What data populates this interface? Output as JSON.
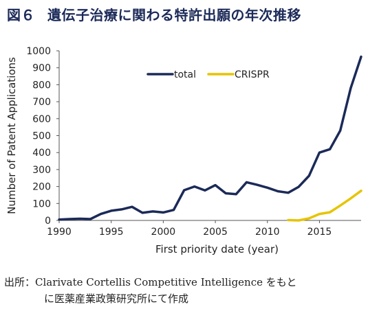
{
  "figure": {
    "number": "図６",
    "title": "遺伝子治療に関わる特許出願の年次推移"
  },
  "source": {
    "line1": "出所：Clarivate Cortellis Competitive Intelligence をもと",
    "line2": "に医薬産業政策研究所にて作成"
  },
  "chart_data": {
    "type": "line",
    "xlabel": "First priority date (year)",
    "ylabel": "Number of Patent Applications",
    "xlim": [
      1990,
      2019
    ],
    "ylim": [
      0,
      1000
    ],
    "x_ticks": [
      1990,
      1995,
      2000,
      2005,
      2010,
      2015
    ],
    "y_ticks": [
      0,
      100,
      200,
      300,
      400,
      500,
      600,
      700,
      800,
      900,
      1000
    ],
    "grid": false,
    "legend_position": "top-center",
    "series": [
      {
        "name": "total",
        "color": "#1b2a58",
        "x": [
          1990,
          1991,
          1992,
          1993,
          1994,
          1995,
          1996,
          1997,
          1998,
          1999,
          2000,
          2001,
          2002,
          2003,
          2004,
          2005,
          2006,
          2007,
          2008,
          2009,
          2010,
          2011,
          2012,
          2013,
          2014,
          2015,
          2016,
          2017,
          2018,
          2019
        ],
        "y": [
          5,
          8,
          10,
          8,
          38,
          57,
          65,
          80,
          45,
          53,
          47,
          62,
          178,
          200,
          177,
          208,
          160,
          155,
          225,
          210,
          193,
          172,
          163,
          198,
          263,
          400,
          420,
          530,
          780,
          965
        ]
      },
      {
        "name": "CRISPR",
        "color": "#e6c400",
        "x": [
          2012,
          2013,
          2014,
          2015,
          2016,
          2017,
          2018,
          2019
        ],
        "y": [
          2,
          0,
          12,
          38,
          48,
          88,
          130,
          175
        ]
      }
    ]
  }
}
